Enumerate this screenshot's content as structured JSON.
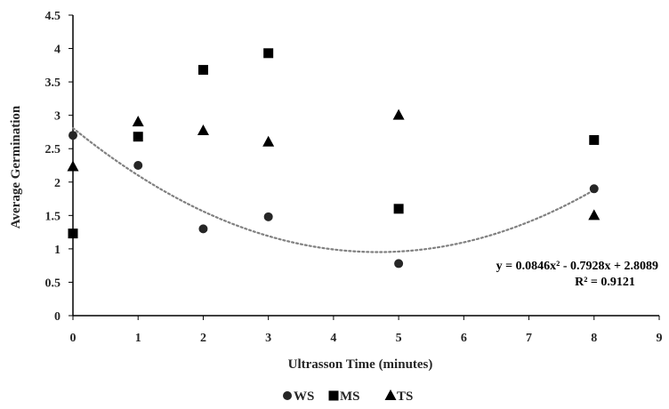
{
  "chart_data": {
    "type": "scatter",
    "title": "",
    "xlabel": "Ultrasson Time (minutes)",
    "ylabel": "Average Germination",
    "xlim": [
      0,
      9
    ],
    "ylim": [
      0,
      4.5
    ],
    "x_ticks": [
      "0",
      "1",
      "2",
      "3",
      "4",
      "5",
      "6",
      "7",
      "8",
      "9"
    ],
    "y_ticks": [
      "0",
      "0.5",
      "1",
      "1.5",
      "2",
      "2.5",
      "3",
      "3.5",
      "4",
      "4.5"
    ],
    "grid": false,
    "legend_position": "bottom",
    "series": [
      {
        "name": "WS",
        "marker": "circle",
        "color": "#262626",
        "x": [
          0,
          1,
          2,
          3,
          5,
          8
        ],
        "y": [
          2.7,
          2.25,
          1.3,
          1.48,
          0.78,
          1.9
        ]
      },
      {
        "name": "MS",
        "marker": "square",
        "color": "#000000",
        "x": [
          0,
          1,
          2,
          3,
          5,
          8
        ],
        "y": [
          1.23,
          2.68,
          3.68,
          3.93,
          1.6,
          2.63
        ]
      },
      {
        "name": "TS",
        "marker": "triangle",
        "color": "#000000",
        "x": [
          0,
          1,
          2,
          3,
          5,
          8
        ],
        "y": [
          2.23,
          2.9,
          2.77,
          2.6,
          3.0,
          1.5
        ]
      }
    ],
    "trendline": {
      "series": "WS",
      "type": "polynomial",
      "coefficients": [
        0.0846,
        -0.7928,
        2.8089
      ],
      "x_range": [
        0,
        8
      ],
      "color": "#808080",
      "style": "dotted"
    },
    "annotations": {
      "equation": "y = 0.0846x² - 0.7928x + 2.8089",
      "r_squared": "R² = 0.9121"
    }
  }
}
